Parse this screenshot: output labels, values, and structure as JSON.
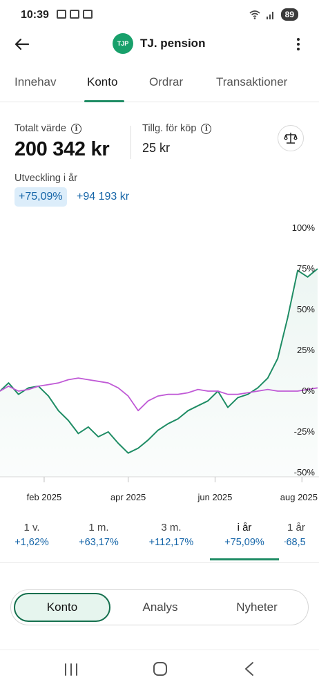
{
  "status": {
    "time": "10:39",
    "battery": "89"
  },
  "header": {
    "back_icon": "arrow-left-icon",
    "badge": "TJP",
    "title": "TJ. pension",
    "more_icon": "more-vertical-icon"
  },
  "tabs": [
    {
      "label": "Innehav",
      "active": false
    },
    {
      "label": "Konto",
      "active": true
    },
    {
      "label": "Ordrar",
      "active": false
    },
    {
      "label": "Transaktioner",
      "active": false
    }
  ],
  "summary": {
    "total_label": "Totalt värde",
    "total_value": "200 342 kr",
    "available_label": "Tillg. för köp",
    "available_value": "25 kr",
    "development_label": "Utveckling i år",
    "development_pct": "+75,09%",
    "development_kr": "+94 193 kr"
  },
  "chart_data": {
    "type": "line",
    "y_tick_labels": [
      "100%",
      "75%",
      "50%",
      "25%",
      "0%",
      "-25%",
      "-50%"
    ],
    "ylim": [
      -50,
      100
    ],
    "x_tick_labels": [
      "feb 2025",
      "apr 2025",
      "jun 2025",
      "aug 2025"
    ],
    "colors": {
      "account": "#1e8c64",
      "index": "#c05ad6"
    },
    "series": [
      {
        "x": [
          "2025-01-01",
          "2025-01-07",
          "2025-01-14",
          "2025-01-21",
          "2025-01-28",
          "2025-02-04",
          "2025-02-11",
          "2025-02-18",
          "2025-02-25",
          "2025-03-04",
          "2025-03-11",
          "2025-03-18",
          "2025-03-25",
          "2025-04-01",
          "2025-04-08",
          "2025-04-15",
          "2025-04-22",
          "2025-04-29",
          "2025-05-06",
          "2025-05-13",
          "2025-05-20",
          "2025-05-27",
          "2025-06-03",
          "2025-06-10",
          "2025-06-17",
          "2025-06-24",
          "2025-07-01",
          "2025-07-08",
          "2025-07-15",
          "2025-07-22",
          "2025-07-29",
          "2025-08-05",
          "2025-08-12"
        ],
        "values": [
          0,
          5,
          -2,
          2,
          3,
          -3,
          -12,
          -18,
          -26,
          -22,
          -28,
          -25,
          -32,
          -38,
          -35,
          -30,
          -24,
          -20,
          -17,
          -12,
          -9,
          -6,
          0,
          -10,
          -4,
          -2,
          2,
          8,
          20,
          45,
          74,
          70,
          75
        ]
      },
      {
        "x": [
          "2025-01-01",
          "2025-01-07",
          "2025-01-14",
          "2025-01-21",
          "2025-01-28",
          "2025-02-04",
          "2025-02-11",
          "2025-02-18",
          "2025-02-25",
          "2025-03-04",
          "2025-03-11",
          "2025-03-18",
          "2025-03-25",
          "2025-04-01",
          "2025-04-08",
          "2025-04-15",
          "2025-04-22",
          "2025-04-29",
          "2025-05-06",
          "2025-05-13",
          "2025-05-20",
          "2025-05-27",
          "2025-06-03",
          "2025-06-10",
          "2025-06-17",
          "2025-06-24",
          "2025-07-01",
          "2025-07-08",
          "2025-07-15",
          "2025-07-22",
          "2025-07-29",
          "2025-08-05",
          "2025-08-12"
        ],
        "values": [
          0,
          3,
          0,
          1,
          3,
          4,
          5,
          7,
          8,
          7,
          6,
          5,
          2,
          -3,
          -12,
          -6,
          -3,
          -2,
          -2,
          -1,
          1,
          0,
          0,
          -2,
          -2,
          -1,
          0,
          1,
          0,
          0,
          0,
          1,
          2
        ]
      }
    ]
  },
  "periods": [
    {
      "label": "1 v.",
      "value": "+1,62%",
      "active": false
    },
    {
      "label": "1 m.",
      "value": "+63,17%",
      "active": false
    },
    {
      "label": "3 m.",
      "value": "+112,17%",
      "active": false
    },
    {
      "label": "i år",
      "value": "+75,09%",
      "active": true
    },
    {
      "label": "1 år",
      "value": "+68,5",
      "active": false
    }
  ],
  "segments": [
    {
      "label": "Konto",
      "active": true
    },
    {
      "label": "Analys",
      "active": false
    },
    {
      "label": "Nyheter",
      "active": false
    }
  ],
  "nav": {
    "recents_icon": "recents-icon",
    "home_icon": "home-icon",
    "back_icon": "back-icon"
  }
}
